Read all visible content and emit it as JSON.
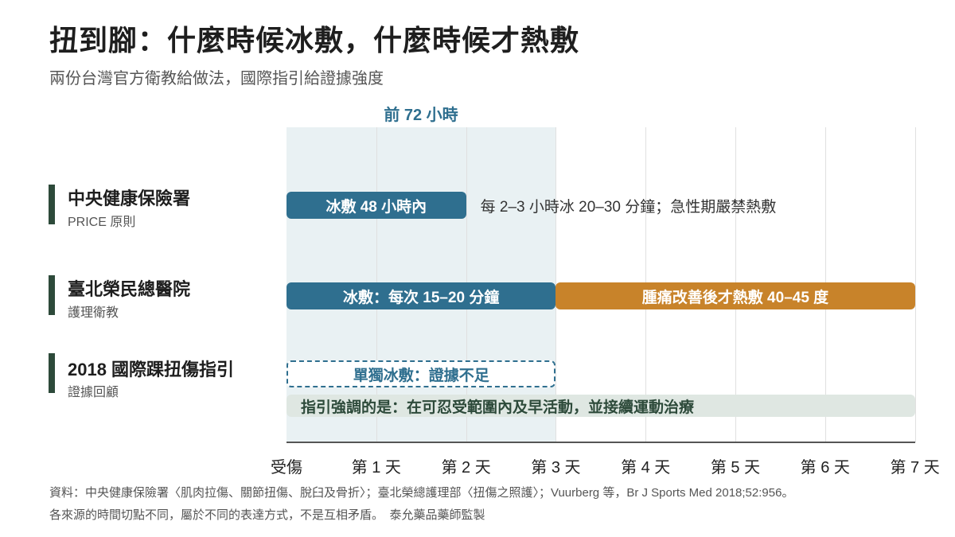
{
  "title": "扭到腳：什麼時候冰敷，什麼時候才熱敷",
  "subtitle": "兩份台灣官方衛教給做法，國際指引給證據強度",
  "window_label": "前 72 小時",
  "axis": {
    "ticks": [
      "受傷",
      "第 1 天",
      "第 2 天",
      "第 3 天",
      "第 4 天",
      "第 5 天",
      "第 6 天",
      "第 7 天"
    ]
  },
  "rows": [
    {
      "name": "中央健康保險署",
      "sub": "PRICE 原則",
      "bars": [
        {
          "label": "冰敷 48 小時內",
          "start_day": 0,
          "end_day": 2,
          "style": "blue"
        }
      ],
      "note": "每 2–3 小時冰 20–30 分鐘；急性期嚴禁熱敷"
    },
    {
      "name": "臺北榮民總醫院",
      "sub": "護理衛教",
      "bars": [
        {
          "label": "冰敷：每次 15–20 分鐘",
          "start_day": 0,
          "end_day": 3,
          "style": "blue"
        },
        {
          "label": "腫痛改善後才熱敷 40–45 度",
          "start_day": 3,
          "end_day": 7,
          "style": "orange"
        }
      ]
    },
    {
      "name": "2018 國際踝扭傷指引",
      "sub": "證據回顧",
      "bars": [
        {
          "label": "單獨冰敷：證據不足",
          "start_day": 0,
          "end_day": 3,
          "style": "dashed"
        },
        {
          "label": "指引強調的是：在可忍受範圍內及早活動，並接續運動治療",
          "start_day": 0,
          "end_day": 7,
          "style": "note"
        }
      ]
    }
  ],
  "colors": {
    "blue": "#2f6f8f",
    "orange": "#c8832a",
    "dark_green": "#2d4a3a",
    "shade": "#e9f1f3"
  },
  "footnotes": [
    "資料：中央健康保險署〈肌肉拉傷、關節扭傷、脫臼及骨折〉；臺北榮總護理部〈扭傷之照護〉；Vuurberg 等，Br J Sports Med 2018;52:956。",
    "各來源的時間切點不同，屬於不同的表達方式，不是互相矛盾。　泰允藥品藥師監製"
  ]
}
